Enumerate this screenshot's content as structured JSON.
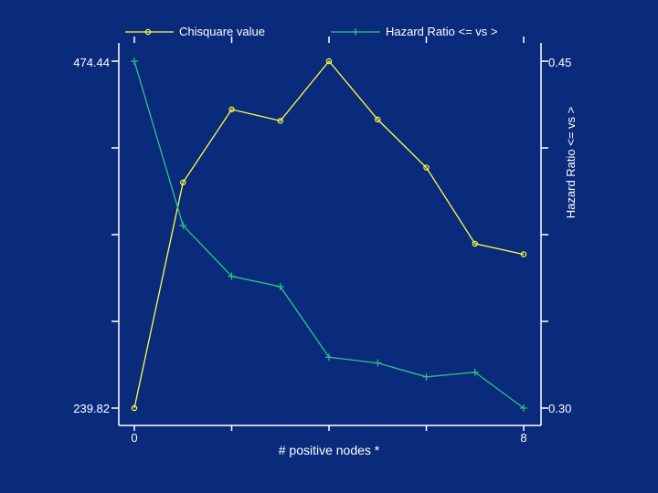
{
  "chart_data": {
    "type": "line",
    "title": "",
    "xlabel": "# positive nodes *",
    "ylabel_left": "",
    "ylabel_right": "Hazard Ratio <= vs >",
    "x_tick_labels": [
      "0",
      "8"
    ],
    "left_tick_labels": [
      "239.82",
      "474.44"
    ],
    "right_tick_labels": [
      "0.30",
      "0.45"
    ],
    "x": [
      0,
      1,
      2,
      3,
      4,
      5,
      6,
      7,
      8
    ],
    "xlim": [
      0,
      8
    ],
    "ylim_left": [
      239.82,
      474.44
    ],
    "ylim_right": [
      0.3,
      0.45
    ],
    "grid": false,
    "legend_position": "top",
    "series": [
      {
        "name": "Chisquare value",
        "axis": "left",
        "color": "#ffff44",
        "marker": "circle",
        "values": [
          239.82,
          392.4,
          441.8,
          434.1,
          474.44,
          435.0,
          402.5,
          351.0,
          343.8
        ]
      },
      {
        "name": "Hazard Ratio <= vs >",
        "axis": "right",
        "color": "#2ec48a",
        "marker": "plus",
        "values": [
          0.45,
          0.379,
          0.357,
          0.3525,
          0.322,
          0.3195,
          0.3135,
          0.3155,
          0.3
        ]
      }
    ]
  }
}
